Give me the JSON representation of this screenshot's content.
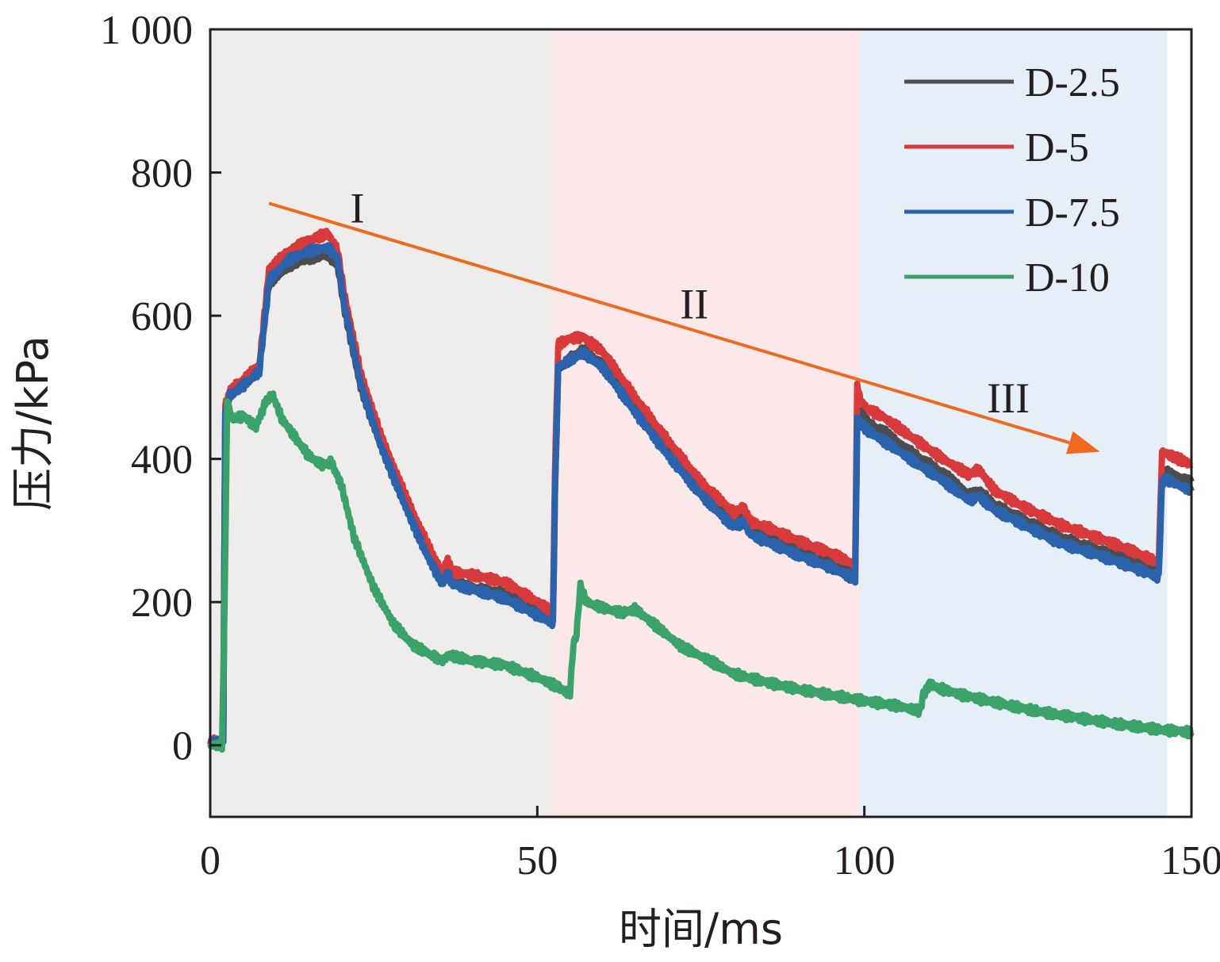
{
  "chart_data": {
    "type": "line",
    "title": "",
    "xlabel": "时间/ms",
    "ylabel": "压力/kPa",
    "xlim": [
      0,
      150
    ],
    "ylim": [
      -100,
      1000
    ],
    "x_ticks": [
      {
        "value": 0,
        "label": "0"
      },
      {
        "value": 50,
        "label": "50"
      },
      {
        "value": 100,
        "label": "100"
      },
      {
        "value": 150,
        "label": "150"
      }
    ],
    "y_ticks": [
      {
        "value": 0,
        "label": "0"
      },
      {
        "value": 200,
        "label": "200"
      },
      {
        "value": 400,
        "label": "400"
      },
      {
        "value": 600,
        "label": "600"
      },
      {
        "value": 800,
        "label": "800"
      },
      {
        "value": 1000,
        "label": "1 000"
      }
    ],
    "grid": false,
    "legend_position": "top-right",
    "regions": [
      {
        "label": "I",
        "x_range": [
          0,
          52.5
        ],
        "color": "#eeedeb",
        "label_at": [
          22.5,
          730
        ]
      },
      {
        "label": "II",
        "x_range": [
          52.5,
          99.3
        ],
        "color": "#fbe8e8",
        "label_at": [
          74,
          596
        ]
      },
      {
        "label": "III",
        "x_range": [
          99.3,
          146.3
        ],
        "color": "#e6eef8",
        "label_at": [
          122,
          465
        ]
      }
    ],
    "trend_arrow": {
      "from": [
        9,
        757
      ],
      "to": [
        136,
        410
      ],
      "color": "#ef6a21"
    },
    "series": [
      {
        "name": "D-2.5",
        "color": "#4d4d4f",
        "x": [
          0,
          2.0,
          2.3,
          3.0,
          5.0,
          7.5,
          9.0,
          12.0,
          15.0,
          18.0,
          19.5,
          20.5,
          23.0,
          26.0,
          30.0,
          33.0,
          35.5,
          36.3,
          37.0,
          40.0,
          45.0,
          50.0,
          52.4,
          52.7,
          53.2,
          55.0,
          57.0,
          60.0,
          65.0,
          70.0,
          75.0,
          80.0,
          81.5,
          82.5,
          85.0,
          90.0,
          95.0,
          98.6,
          98.9,
          99.4,
          100.5,
          103.0,
          107.0,
          112.0,
          116.0,
          117.5,
          120.0,
          125.0,
          130.0,
          135.0,
          140.0,
          145.0,
          145.5,
          146.0,
          150.0
        ],
        "y": [
          5,
          5,
          470,
          490,
          505,
          525,
          645,
          670,
          680,
          685,
          670,
          610,
          500,
          420,
          330,
          270,
          228,
          245,
          228,
          220,
          212,
          188,
          178,
          355,
          525,
          540,
          552,
          532,
          470,
          410,
          355,
          312,
          320,
          300,
          292,
          272,
          255,
          240,
          440,
          465,
          450,
          438,
          410,
          380,
          350,
          355,
          335,
          312,
          290,
          275,
          260,
          242,
          375,
          382,
          368
        ]
      },
      {
        "name": "D-5",
        "color": "#d8393b",
        "x": [
          0,
          2.0,
          2.3,
          3.0,
          5.0,
          7.5,
          9.0,
          12.0,
          15.0,
          18.0,
          19.5,
          20.5,
          23.0,
          26.0,
          30.0,
          33.0,
          35.5,
          36.3,
          37.0,
          40.0,
          45.0,
          50.0,
          52.4,
          52.7,
          53.2,
          55.0,
          57.0,
          60.0,
          65.0,
          70.0,
          75.0,
          80.0,
          81.5,
          82.5,
          85.0,
          90.0,
          95.0,
          98.6,
          98.9,
          99.4,
          100.5,
          103.0,
          107.0,
          112.0,
          116.0,
          117.5,
          120.0,
          125.0,
          130.0,
          135.0,
          140.0,
          145.0,
          145.5,
          146.0,
          150.0
        ],
        "y": [
          5,
          5,
          475,
          495,
          510,
          530,
          665,
          690,
          705,
          715,
          690,
          630,
          520,
          435,
          345,
          285,
          240,
          260,
          242,
          238,
          228,
          200,
          185,
          380,
          560,
          568,
          570,
          550,
          485,
          425,
          368,
          325,
          332,
          312,
          305,
          285,
          268,
          252,
          505,
          482,
          470,
          458,
          432,
          400,
          378,
          385,
          355,
          330,
          308,
          292,
          275,
          255,
          410,
          408,
          392
        ]
      },
      {
        "name": "D-7.5",
        "color": "#2a62ac",
        "x": [
          0,
          2.0,
          2.3,
          3.0,
          5.0,
          7.5,
          9.0,
          12.0,
          15.0,
          18.0,
          19.5,
          20.5,
          23.0,
          26.0,
          30.0,
          33.0,
          35.5,
          36.3,
          37.0,
          40.0,
          45.0,
          50.0,
          52.4,
          52.7,
          53.2,
          55.0,
          57.0,
          60.0,
          65.0,
          70.0,
          75.0,
          80.0,
          81.5,
          82.5,
          85.0,
          90.0,
          95.0,
          98.6,
          98.9,
          99.4,
          100.5,
          103.0,
          107.0,
          112.0,
          116.0,
          117.5,
          120.0,
          125.0,
          130.0,
          135.0,
          140.0,
          145.0,
          145.5,
          146.0,
          150.0
        ],
        "y": [
          5,
          5,
          468,
          488,
          502,
          522,
          650,
          678,
          690,
          695,
          680,
          615,
          505,
          420,
          330,
          268,
          225,
          240,
          225,
          218,
          205,
          182,
          170,
          350,
          528,
          538,
          548,
          528,
          465,
          405,
          350,
          305,
          312,
          295,
          285,
          265,
          248,
          232,
          455,
          450,
          440,
          425,
          400,
          370,
          342,
          348,
          328,
          305,
          282,
          268,
          252,
          235,
          365,
          372,
          355
        ]
      },
      {
        "name": "D-10",
        "color": "#3ba36a",
        "x": [
          0,
          1.8,
          2.2,
          2.6,
          3.0,
          3.5,
          5.0,
          7.0,
          8.5,
          9.5,
          11.0,
          13.0,
          15.0,
          17.0,
          18.5,
          20.0,
          22.0,
          25.0,
          28.0,
          31.0,
          34.0,
          35.5,
          36.5,
          40.0,
          45.0,
          50.0,
          53.5,
          55.0,
          55.5,
          56.0,
          56.6,
          57.5,
          60.0,
          63.0,
          65.0,
          68.0,
          72.0,
          76.0,
          80.0,
          85.0,
          90.0,
          95.0,
          100.0,
          105.0,
          108.5,
          109.0,
          110.0,
          112.0,
          115.0,
          120.0,
          125.0,
          130.0,
          135.0,
          140.0,
          145.0,
          150.0
        ],
        "y": [
          0,
          0,
          190,
          480,
          468,
          455,
          460,
          445,
          480,
          490,
          455,
          430,
          405,
          392,
          395,
          365,
          290,
          220,
          170,
          140,
          125,
          118,
          126,
          118,
          112,
          95,
          80,
          72,
          140,
          155,
          225,
          200,
          192,
          185,
          190,
          168,
          138,
          120,
          100,
          88,
          78,
          70,
          62,
          55,
          48,
          70,
          85,
          78,
          70,
          60,
          50,
          42,
          35,
          28,
          22,
          18
        ]
      }
    ]
  }
}
